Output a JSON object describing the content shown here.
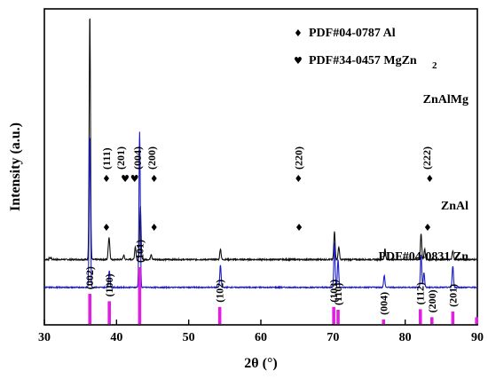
{
  "chart_data": {
    "type": "line",
    "xlabel": "2θ (°)",
    "ylabel": "Intensity (a.u.)",
    "xlim": [
      30,
      90
    ],
    "x_ticks": [
      "30",
      "40",
      "50",
      "60",
      "70",
      "80",
      "90"
    ],
    "y_ticks_shown": false,
    "grid": false,
    "legend": {
      "placement": "top-right",
      "entries": [
        {
          "symbol": "♦",
          "label_main": "PDF#04-0787 Al",
          "label_sub": ""
        },
        {
          "symbol": "♥",
          "label_main": "PDF#34-0457 MgZn",
          "label_sub": "2"
        }
      ]
    },
    "series": [
      {
        "name": "ZnAlMg",
        "color": "#111111",
        "baseline": 0.61,
        "noise": 0.006,
        "peaks": [
          {
            "x": 36.3,
            "h": 2.3
          },
          {
            "x": 38.9,
            "h": 0.1
          },
          {
            "x": 39.0,
            "h": 0.14
          },
          {
            "x": 41.0,
            "h": 0.04
          },
          {
            "x": 42.6,
            "h": 0.12
          },
          {
            "x": 43.3,
            "h": 0.5
          },
          {
            "x": 44.8,
            "h": 0.05
          },
          {
            "x": 54.4,
            "h": 0.1
          },
          {
            "x": 70.2,
            "h": 0.26
          },
          {
            "x": 70.8,
            "h": 0.12
          },
          {
            "x": 77.2,
            "h": 0.1
          },
          {
            "x": 82.2,
            "h": 0.24
          },
          {
            "x": 82.7,
            "h": 0.1
          },
          {
            "x": 86.6,
            "h": 0.08
          }
        ]
      },
      {
        "name": "ZnAl",
        "color": "#1c1cc8",
        "baseline": 0.35,
        "noise": 0.005,
        "peaks": [
          {
            "x": 36.3,
            "h": 1.42
          },
          {
            "x": 39.0,
            "h": 0.16
          },
          {
            "x": 43.2,
            "h": 1.45
          },
          {
            "x": 54.4,
            "h": 0.21
          },
          {
            "x": 70.2,
            "h": 0.42
          },
          {
            "x": 70.7,
            "h": 0.26
          },
          {
            "x": 77.1,
            "h": 0.11
          },
          {
            "x": 82.2,
            "h": 0.31
          },
          {
            "x": 82.6,
            "h": 0.14
          },
          {
            "x": 86.6,
            "h": 0.2
          }
        ]
      }
    ],
    "reference": {
      "name": "PDF#04-0831 Zn",
      "color": "#e020e0",
      "peaks": [
        {
          "x": 36.3,
          "h": 53,
          "label": "(002)"
        },
        {
          "x": 39.0,
          "h": 40,
          "label": "(100)"
        },
        {
          "x": 43.2,
          "h": 100,
          "label": "(101)"
        },
        {
          "x": 54.3,
          "h": 30,
          "label": "(102)"
        },
        {
          "x": 70.1,
          "h": 30,
          "label": "(103)"
        },
        {
          "x": 70.7,
          "h": 25,
          "label": "(110)"
        },
        {
          "x": 77.0,
          "h": 8,
          "label": "(004)"
        },
        {
          "x": 82.1,
          "h": 26,
          "label": "(112)"
        },
        {
          "x": 83.7,
          "h": 12,
          "label": "(200)"
        },
        {
          "x": 86.6,
          "h": 22,
          "label": "(201)"
        },
        {
          "x": 89.9,
          "h": 12,
          "label": ""
        }
      ]
    },
    "annotations": [
      {
        "series": "ZnAlMg",
        "symbol": "♦",
        "x": 38.6
      },
      {
        "series": "ZnAlMg",
        "symbol": "♥",
        "x": 41.2
      },
      {
        "series": "ZnAlMg",
        "symbol": "♥",
        "x": 42.5
      },
      {
        "series": "ZnAlMg",
        "symbol": "♦",
        "x": 45.2
      },
      {
        "series": "ZnAlMg",
        "symbol": "♦",
        "x": 65.2
      },
      {
        "series": "ZnAlMg",
        "symbol": "♦",
        "x": 83.4
      },
      {
        "series": "ZnAl",
        "symbol": "♦",
        "x": 38.6
      },
      {
        "series": "ZnAl",
        "symbol": "♦",
        "x": 45.2
      },
      {
        "series": "ZnAl",
        "symbol": "♦",
        "x": 65.3
      },
      {
        "series": "ZnAl",
        "symbol": "♦",
        "x": 83.1
      }
    ],
    "hkl_labels": [
      {
        "x": 38.6,
        "text": "(111)"
      },
      {
        "x": 40.6,
        "text": "(201)"
      },
      {
        "x": 42.9,
        "text": "(004)"
      },
      {
        "x": 44.9,
        "text": "(200)"
      },
      {
        "x": 65.2,
        "text": "(220)"
      },
      {
        "x": 83.0,
        "text": "(222)"
      }
    ]
  }
}
